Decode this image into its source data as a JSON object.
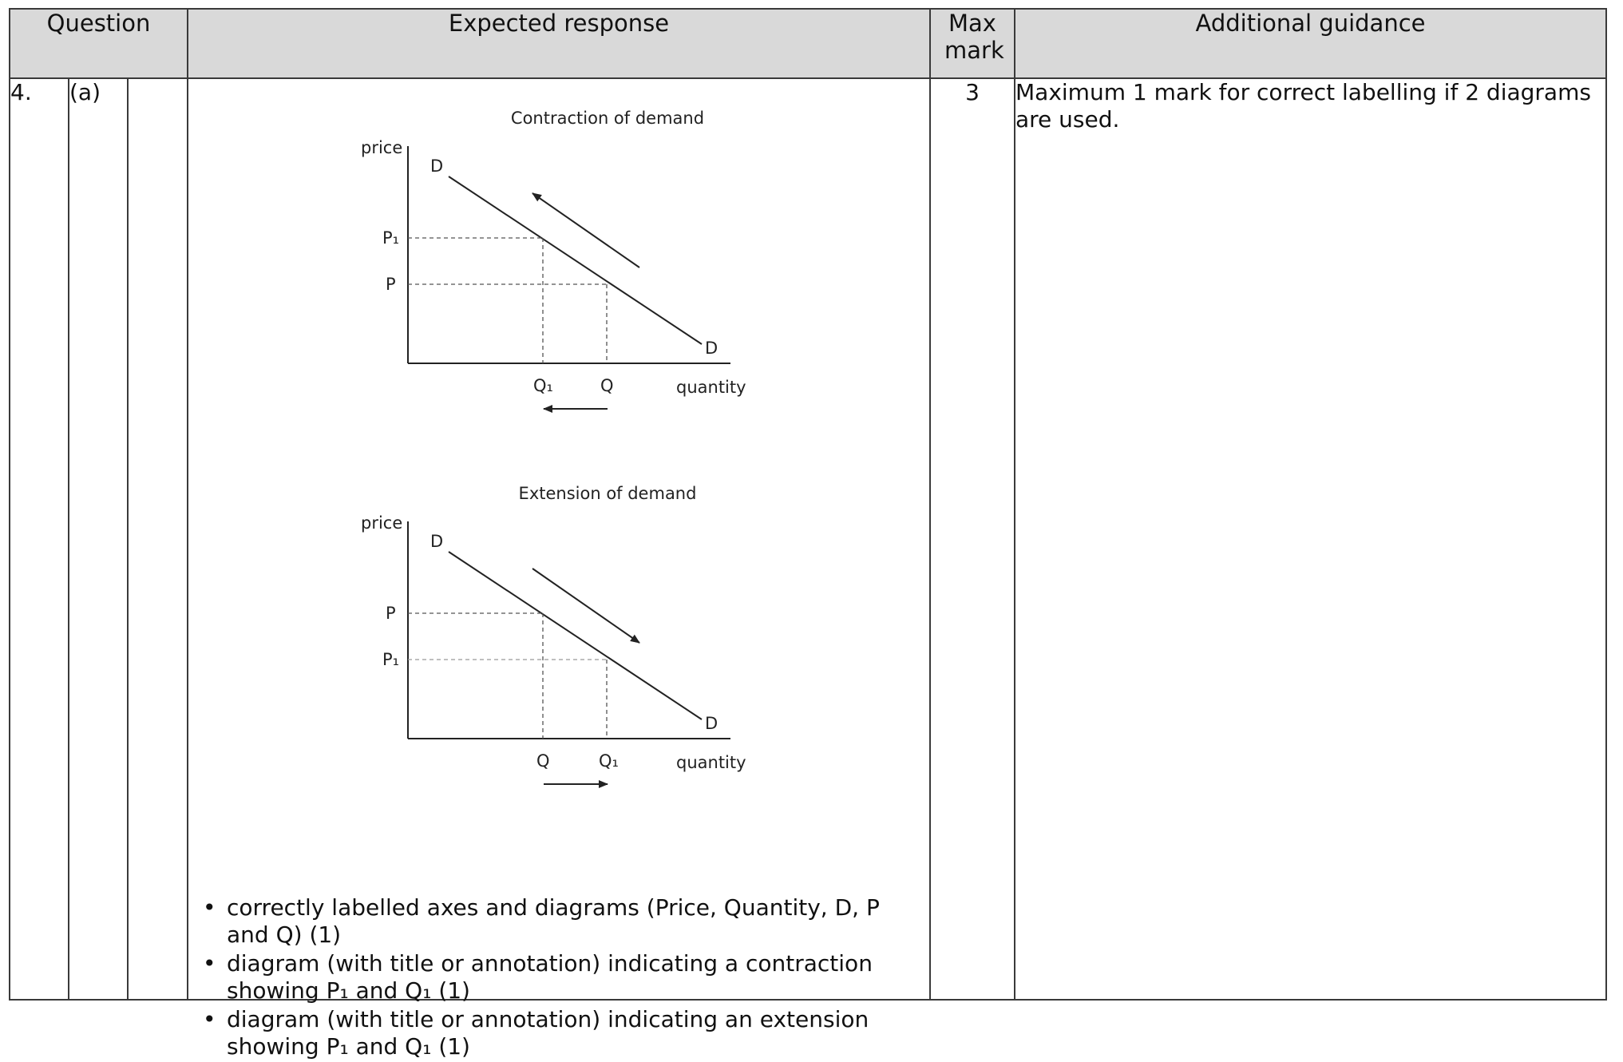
{
  "headers": {
    "question": "Question",
    "expected_response": "Expected response",
    "max_mark": "Max mark",
    "additional_guidance": "Additional guidance"
  },
  "row": {
    "question_number": "4.",
    "question_part": "(a)",
    "question_subpart": "",
    "max_mark": "3",
    "guidance": "Maximum 1 mark for correct labelling if 2 diagrams are used."
  },
  "diagrams": [
    {
      "title": "Contraction of demand",
      "y_axis_label": "price",
      "x_axis_label": "quantity",
      "curve_label": "D",
      "upper_price_label": "P₁",
      "lower_price_label": "P",
      "left_qty_label": "Q₁",
      "right_qty_label": "Q",
      "movement": "up the curve, quantity decreases from Q to Q₁"
    },
    {
      "title": "Extension of demand",
      "y_axis_label": "price",
      "x_axis_label": "quantity",
      "curve_label": "D",
      "upper_price_label": "P",
      "lower_price_label": "P₁",
      "left_qty_label": "Q",
      "right_qty_label": "Q₁",
      "movement": "down the curve, quantity increases from Q to Q₁"
    }
  ],
  "bullets": [
    "correctly labelled axes and diagrams (Price, Quantity, D, P and Q) (1)",
    "diagram (with title or annotation) indicating a contraction showing P₁ and Q₁ (1)",
    "diagram (with title or annotation) indicating an extension showing P₁ and Q₁ (1)"
  ],
  "bullet_symbol": "•",
  "colors": {
    "header_bg": "#d9d9d9",
    "border": "#3a3a3a",
    "line": "#222222"
  }
}
